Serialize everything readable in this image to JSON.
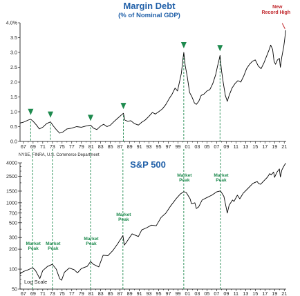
{
  "colors": {
    "title": "#1f5fa8",
    "marker": "#1e8a4e",
    "record": "#c0262b",
    "line": "#000000"
  },
  "chart_data": [
    {
      "type": "line",
      "title": "Margin Debt",
      "subtitle": "(% of Nominal GDP)",
      "xlabel": "",
      "ylabel": "",
      "x_unit": "year",
      "xlim": [
        1966.3,
        2021.4
      ],
      "ylim": [
        0.0,
        4.0
      ],
      "y_ticks": [
        "0.0",
        "0.5",
        "1.0",
        "1.5",
        "2.0",
        "2.5",
        "3.0",
        "3.5",
        "4.0%"
      ],
      "y_tick_values": [
        0,
        0.5,
        1,
        1.5,
        2,
        2.5,
        3,
        3.5,
        4
      ],
      "x_ticks": [
        "67",
        "69",
        "71",
        "73",
        "75",
        "77",
        "79",
        "81",
        "83",
        "85",
        "87",
        "89",
        "91",
        "93",
        "95",
        "97",
        "99",
        "01",
        "03",
        "05",
        "07",
        "09",
        "11",
        "13",
        "15",
        "17",
        "19",
        "21"
      ],
      "x_tick_values": [
        1967,
        1969,
        1971,
        1973,
        1975,
        1977,
        1979,
        1981,
        1983,
        1985,
        1987,
        1989,
        1991,
        1993,
        1995,
        1997,
        1999,
        2001,
        2003,
        2005,
        2007,
        2009,
        2011,
        2013,
        2015,
        2017,
        2019,
        2021
      ],
      "source": "NYSE, FINRA, U.S. Commerce Department",
      "grid": false,
      "legend": "none",
      "series": [
        {
          "x": [
            1966.3,
            1967.0,
            1968.0,
            1968.5,
            1969.0,
            1969.7,
            1970.3,
            1971.0,
            1971.8,
            1972.6,
            1973.2,
            1973.8,
            1974.5,
            1975.2,
            1976.0,
            1977.0,
            1978.0,
            1979.0,
            1980.0,
            1980.9,
            1981.5,
            1982.2,
            1983.0,
            1983.6,
            1984.3,
            1985.0,
            1985.8,
            1986.5,
            1987.2,
            1987.7,
            1988.0,
            1988.6,
            1989.2,
            1990.0,
            1990.8,
            1991.5,
            1992.2,
            1993.0,
            1993.7,
            1994.3,
            1995.0,
            1995.8,
            1996.5,
            1997.2,
            1997.8,
            1998.4,
            1998.9,
            1999.3,
            1999.7,
            2000.0,
            2000.2,
            2000.5,
            2000.9,
            2001.4,
            2001.9,
            2002.4,
            2002.8,
            2003.3,
            2003.8,
            2004.4,
            2005.0,
            2005.6,
            2006.2,
            2006.8,
            2007.2,
            2007.5,
            2007.7,
            2008.0,
            2008.4,
            2008.8,
            2009.2,
            2009.6,
            2010.2,
            2010.8,
            2011.4,
            2012.0,
            2012.6,
            2013.2,
            2013.8,
            2014.4,
            2015.0,
            2015.6,
            2016.2,
            2016.8,
            2017.4,
            2017.9,
            2018.2,
            2018.6,
            2018.9,
            2019.2,
            2019.6,
            2020.0,
            2020.2,
            2020.5,
            2020.9,
            2021.1,
            2021.3
          ],
          "y": [
            0.62,
            0.65,
            0.72,
            0.75,
            0.68,
            0.55,
            0.42,
            0.48,
            0.6,
            0.66,
            0.52,
            0.4,
            0.28,
            0.32,
            0.42,
            0.45,
            0.5,
            0.48,
            0.52,
            0.55,
            0.45,
            0.4,
            0.52,
            0.58,
            0.5,
            0.55,
            0.68,
            0.78,
            0.88,
            0.95,
            0.72,
            0.68,
            0.7,
            0.6,
            0.55,
            0.65,
            0.72,
            0.85,
            0.98,
            0.92,
            1.0,
            1.1,
            1.25,
            1.45,
            1.6,
            1.8,
            1.7,
            2.0,
            2.3,
            2.75,
            3.0,
            2.55,
            2.2,
            1.65,
            1.5,
            1.3,
            1.25,
            1.35,
            1.55,
            1.6,
            1.7,
            1.75,
            1.95,
            2.25,
            2.55,
            2.75,
            2.9,
            2.4,
            1.95,
            1.55,
            1.35,
            1.55,
            1.8,
            1.95,
            2.05,
            2.0,
            2.2,
            2.45,
            2.6,
            2.7,
            2.75,
            2.55,
            2.45,
            2.65,
            2.9,
            3.1,
            3.25,
            3.1,
            2.7,
            2.6,
            2.75,
            2.8,
            2.5,
            2.85,
            3.2,
            3.45,
            3.75
          ]
        }
      ],
      "markers": [
        {
          "x": 1968.5,
          "y": 0.75
        },
        {
          "x": 1972.6,
          "y": 0.66
        },
        {
          "x": 1980.9,
          "y": 0.55
        },
        {
          "x": 1987.7,
          "y": 0.95
        },
        {
          "x": 2000.2,
          "y": 3.0
        },
        {
          "x": 2007.7,
          "y": 2.9
        }
      ],
      "annotation": {
        "text_lines": [
          "New",
          "Record High"
        ],
        "x": 2021.3,
        "y": 3.75
      }
    },
    {
      "type": "line",
      "title": "S&P 500",
      "xlabel": "",
      "ylabel": "",
      "x_unit": "year",
      "xlim": [
        1966.3,
        2021.4
      ],
      "ylim": [
        50,
        4000
      ],
      "y_scale": "log",
      "scale_note": "Log Scale",
      "y_ticks": [
        "50",
        "100",
        "200",
        "300",
        "500",
        "700",
        "1000",
        "1500",
        "2500",
        "4000"
      ],
      "y_tick_values": [
        50,
        100,
        200,
        300,
        500,
        700,
        1000,
        1500,
        2500,
        4000
      ],
      "x_ticks": [
        "67",
        "69",
        "71",
        "73",
        "75",
        "77",
        "79",
        "81",
        "83",
        "85",
        "87",
        "89",
        "91",
        "93",
        "95",
        "97",
        "99",
        "01",
        "03",
        "05",
        "07",
        "09",
        "11",
        "13",
        "15",
        "17",
        "19",
        "21"
      ],
      "x_tick_values": [
        1967,
        1969,
        1971,
        1973,
        1975,
        1977,
        1979,
        1981,
        1983,
        1985,
        1987,
        1989,
        1991,
        1993,
        1995,
        1997,
        1999,
        2001,
        2003,
        2005,
        2007,
        2009,
        2011,
        2013,
        2015,
        2017,
        2019,
        2021
      ],
      "grid": false,
      "legend": "none",
      "series": [
        {
          "x": [
            1966.3,
            1967.0,
            1968.0,
            1968.9,
            1969.5,
            1970.4,
            1971.0,
            1972.0,
            1973.0,
            1973.8,
            1974.5,
            1974.9,
            1975.5,
            1976.5,
            1977.5,
            1978.2,
            1979.0,
            1980.2,
            1980.9,
            1981.5,
            1982.6,
            1983.5,
            1984.5,
            1985.5,
            1986.5,
            1987.6,
            1987.9,
            1988.5,
            1989.5,
            1990.8,
            1991.5,
            1992.5,
            1993.5,
            1994.5,
            1995.5,
            1996.5,
            1997.5,
            1998.6,
            1999.5,
            2000.2,
            2000.7,
            2001.5,
            2001.8,
            2002.5,
            2002.8,
            2003.3,
            2004.0,
            2005.0,
            2006.0,
            2007.0,
            2007.8,
            2008.5,
            2008.9,
            2009.2,
            2009.6,
            2010.3,
            2010.6,
            2011.3,
            2011.8,
            2012.5,
            2013.5,
            2014.5,
            2015.4,
            2015.7,
            2016.1,
            2016.8,
            2017.5,
            2018.0,
            2018.3,
            2018.8,
            2018.99,
            2019.5,
            2020.0,
            2020.2,
            2020.5,
            2020.9,
            2021.3
          ],
          "y": [
            85,
            92,
            98,
            105,
            95,
            72,
            95,
            110,
            118,
            100,
            72,
            68,
            90,
            104,
            98,
            88,
            102,
            110,
            130,
            118,
            108,
            162,
            160,
            190,
            240,
            320,
            230,
            265,
            340,
            310,
            390,
            420,
            460,
            450,
            600,
            700,
            900,
            1150,
            1360,
            1470,
            1430,
            1150,
            970,
            1000,
            820,
            870,
            1100,
            1200,
            1300,
            1460,
            1510,
            1250,
            900,
            700,
            920,
            1100,
            1050,
            1300,
            1150,
            1390,
            1650,
            1960,
            2090,
            1940,
            1900,
            2150,
            2420,
            2750,
            2640,
            2900,
            2420,
            2900,
            3230,
            2450,
            3100,
            3550,
            3950
          ]
        }
      ],
      "market_peaks": [
        {
          "x": 1968.9,
          "y": 105,
          "label": "Market Peak"
        },
        {
          "x": 1973.0,
          "y": 118,
          "label": "Market Peak"
        },
        {
          "x": 1980.9,
          "y": 130,
          "label": "Market Peak"
        },
        {
          "x": 1987.6,
          "y": 320,
          "label": "Market Peak"
        },
        {
          "x": 2000.2,
          "y": 1470,
          "label": "Market Peak"
        },
        {
          "x": 2007.8,
          "y": 1510,
          "label": "Market Peak"
        }
      ]
    }
  ]
}
